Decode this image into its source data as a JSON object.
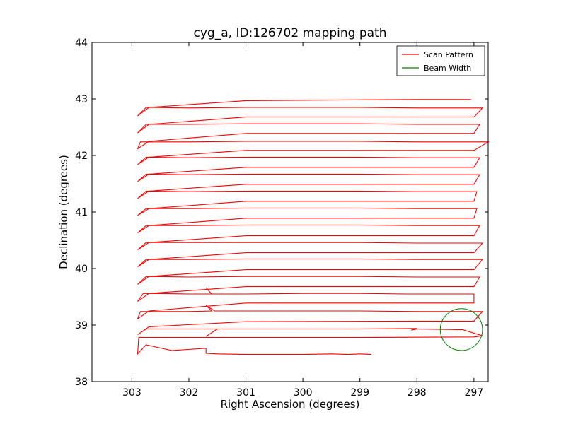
{
  "chart_data": {
    "type": "line",
    "title": "cyg_a, ID:126702 mapping path",
    "xlabel": "Right Ascension (degrees)",
    "ylabel": "Declination (degrees)",
    "xlim": [
      303.7,
      296.75
    ],
    "ylim": [
      38,
      44
    ],
    "x_inverted": true,
    "xticks": [
      303,
      302,
      301,
      300,
      299,
      298,
      297
    ],
    "yticks": [
      38,
      39,
      40,
      41,
      42,
      43,
      44
    ],
    "grid": false,
    "legend_position": "top-right",
    "legend": [
      {
        "label": "Scan Pattern",
        "color": "#ff0000"
      },
      {
        "label": "Beam Width",
        "color": "#008000"
      }
    ],
    "series": [
      {
        "name": "Scan Pattern",
        "color": "#ff0000",
        "points": [
          [
            298.8,
            38.48
          ],
          [
            299.0,
            38.49
          ],
          [
            299.2,
            38.48
          ],
          [
            299.5,
            38.49
          ],
          [
            300.0,
            38.48
          ],
          [
            301.0,
            38.48
          ],
          [
            301.5,
            38.49
          ],
          [
            301.7,
            38.5
          ],
          [
            301.7,
            38.59
          ],
          [
            302.3,
            38.55
          ],
          [
            302.75,
            38.65
          ],
          [
            302.9,
            38.49
          ],
          [
            302.88,
            38.78
          ],
          [
            301.0,
            38.78
          ],
          [
            299.0,
            38.78
          ],
          [
            297.0,
            38.79
          ],
          [
            296.85,
            38.81
          ],
          [
            297.2,
            38.92
          ],
          [
            297.3,
            38.92
          ],
          [
            298.0,
            38.93
          ],
          [
            298.1,
            38.91
          ],
          [
            298.0,
            38.94
          ],
          [
            299.0,
            38.93
          ],
          [
            301.0,
            38.93
          ],
          [
            301.5,
            38.93
          ],
          [
            301.7,
            38.8
          ],
          [
            301.5,
            38.93
          ],
          [
            302.0,
            38.93
          ],
          [
            302.75,
            38.93
          ],
          [
            302.9,
            38.83
          ],
          [
            302.7,
            38.97
          ],
          [
            301.0,
            39.06
          ],
          [
            298.1,
            39.07
          ],
          [
            297.0,
            39.07
          ],
          [
            296.85,
            39.24
          ],
          [
            297.2,
            39.24
          ],
          [
            298.0,
            39.24
          ],
          [
            299.0,
            39.25
          ],
          [
            300.0,
            39.25
          ],
          [
            301.0,
            39.25
          ],
          [
            301.55,
            39.25
          ],
          [
            301.7,
            39.35
          ],
          [
            301.6,
            39.25
          ],
          [
            302.0,
            39.24
          ],
          [
            302.85,
            39.24
          ],
          [
            302.9,
            39.11
          ],
          [
            302.7,
            39.25
          ],
          [
            301.0,
            39.39
          ],
          [
            298.2,
            39.39
          ],
          [
            297.0,
            39.39
          ],
          [
            297.0,
            39.55
          ],
          [
            298.2,
            39.55
          ],
          [
            299.0,
            39.56
          ],
          [
            300.0,
            39.56
          ],
          [
            301.0,
            39.55
          ],
          [
            301.6,
            39.55
          ],
          [
            301.7,
            39.66
          ],
          [
            301.6,
            39.55
          ],
          [
            302.0,
            39.55
          ],
          [
            302.8,
            39.56
          ],
          [
            302.9,
            39.42
          ],
          [
            302.7,
            39.56
          ],
          [
            301.0,
            39.68
          ],
          [
            298.0,
            39.68
          ],
          [
            297.0,
            39.68
          ],
          [
            296.9,
            39.85
          ],
          [
            298.0,
            39.85
          ],
          [
            299.0,
            39.86
          ],
          [
            300.0,
            39.86
          ],
          [
            301.0,
            39.86
          ],
          [
            302.0,
            39.85
          ],
          [
            302.75,
            39.86
          ],
          [
            302.9,
            39.72
          ],
          [
            302.7,
            39.86
          ],
          [
            301.0,
            39.98
          ],
          [
            298.0,
            39.98
          ],
          [
            297.0,
            39.98
          ],
          [
            296.85,
            40.16
          ],
          [
            298.0,
            40.16
          ],
          [
            299.0,
            40.17
          ],
          [
            300.0,
            40.17
          ],
          [
            301.0,
            40.17
          ],
          [
            302.0,
            40.16
          ],
          [
            302.75,
            40.16
          ],
          [
            302.9,
            40.03
          ],
          [
            302.7,
            40.16
          ],
          [
            301.0,
            40.28
          ],
          [
            298.0,
            40.28
          ],
          [
            297.0,
            40.28
          ],
          [
            296.85,
            40.45
          ],
          [
            298.0,
            40.45
          ],
          [
            299.0,
            40.46
          ],
          [
            300.0,
            40.46
          ],
          [
            301.0,
            40.46
          ],
          [
            301.7,
            40.46
          ],
          [
            302.0,
            40.46
          ],
          [
            302.75,
            40.46
          ],
          [
            302.9,
            40.33
          ],
          [
            302.7,
            40.46
          ],
          [
            301.0,
            40.58
          ],
          [
            298.0,
            40.58
          ],
          [
            297.0,
            40.58
          ],
          [
            296.9,
            40.76
          ],
          [
            298.0,
            40.76
          ],
          [
            299.0,
            40.77
          ],
          [
            300.0,
            40.77
          ],
          [
            301.0,
            40.77
          ],
          [
            302.0,
            40.76
          ],
          [
            302.75,
            40.76
          ],
          [
            302.9,
            40.63
          ],
          [
            302.7,
            40.76
          ],
          [
            301.0,
            40.89
          ],
          [
            298.0,
            40.89
          ],
          [
            297.0,
            40.89
          ],
          [
            296.95,
            41.06
          ],
          [
            298.0,
            41.06
          ],
          [
            299.0,
            41.07
          ],
          [
            300.0,
            41.07
          ],
          [
            301.0,
            41.07
          ],
          [
            302.0,
            41.06
          ],
          [
            302.75,
            41.06
          ],
          [
            302.9,
            40.94
          ],
          [
            302.7,
            41.06
          ],
          [
            301.0,
            41.19
          ],
          [
            298.0,
            41.19
          ],
          [
            297.0,
            41.19
          ],
          [
            296.95,
            41.36
          ],
          [
            298.0,
            41.36
          ],
          [
            299.0,
            41.37
          ],
          [
            300.0,
            41.37
          ],
          [
            301.0,
            41.37
          ],
          [
            302.0,
            41.36
          ],
          [
            302.75,
            41.37
          ],
          [
            302.9,
            41.24
          ],
          [
            302.7,
            41.37
          ],
          [
            301.0,
            41.49
          ],
          [
            298.0,
            41.49
          ],
          [
            297.0,
            41.49
          ],
          [
            296.9,
            41.66
          ],
          [
            298.0,
            41.66
          ],
          [
            299.0,
            41.67
          ],
          [
            300.0,
            41.67
          ],
          [
            301.0,
            41.67
          ],
          [
            302.0,
            41.66
          ],
          [
            302.75,
            41.67
          ],
          [
            302.9,
            41.54
          ],
          [
            302.7,
            41.67
          ],
          [
            301.0,
            41.79
          ],
          [
            298.0,
            41.79
          ],
          [
            297.0,
            41.79
          ],
          [
            296.9,
            41.96
          ],
          [
            298.0,
            41.96
          ],
          [
            299.0,
            41.97
          ],
          [
            300.0,
            41.97
          ],
          [
            301.0,
            41.97
          ],
          [
            302.0,
            41.96
          ],
          [
            302.75,
            41.97
          ],
          [
            302.9,
            41.84
          ],
          [
            302.7,
            41.97
          ],
          [
            301.0,
            42.09
          ],
          [
            298.0,
            42.09
          ],
          [
            297.0,
            42.09
          ],
          [
            296.75,
            42.24
          ],
          [
            298.0,
            42.24
          ],
          [
            299.0,
            42.25
          ],
          [
            300.0,
            42.25
          ],
          [
            301.0,
            42.25
          ],
          [
            302.0,
            42.24
          ],
          [
            302.85,
            42.24
          ],
          [
            302.9,
            42.12
          ],
          [
            302.7,
            42.25
          ],
          [
            301.0,
            42.39
          ],
          [
            298.0,
            42.39
          ],
          [
            297.0,
            42.39
          ],
          [
            296.9,
            42.55
          ],
          [
            298.0,
            42.55
          ],
          [
            299.0,
            42.56
          ],
          [
            300.0,
            42.56
          ],
          [
            301.0,
            42.56
          ],
          [
            302.0,
            42.55
          ],
          [
            302.75,
            42.55
          ],
          [
            302.9,
            42.4
          ],
          [
            302.7,
            42.55
          ],
          [
            301.0,
            42.68
          ],
          [
            298.0,
            42.68
          ],
          [
            297.0,
            42.68
          ],
          [
            296.85,
            42.84
          ],
          [
            298.0,
            42.84
          ],
          [
            299.0,
            42.85
          ],
          [
            300.0,
            42.85
          ],
          [
            301.0,
            42.85
          ],
          [
            302.0,
            42.84
          ],
          [
            302.75,
            42.85
          ],
          [
            302.9,
            42.7
          ],
          [
            302.7,
            42.85
          ],
          [
            301.0,
            42.97
          ],
          [
            298.0,
            42.99
          ],
          [
            297.05,
            42.99
          ]
        ]
      }
    ],
    "beam": {
      "name": "Beam Width",
      "color": "#008000",
      "center": [
        297.22,
        38.92
      ],
      "radius_deg": 0.37
    }
  }
}
